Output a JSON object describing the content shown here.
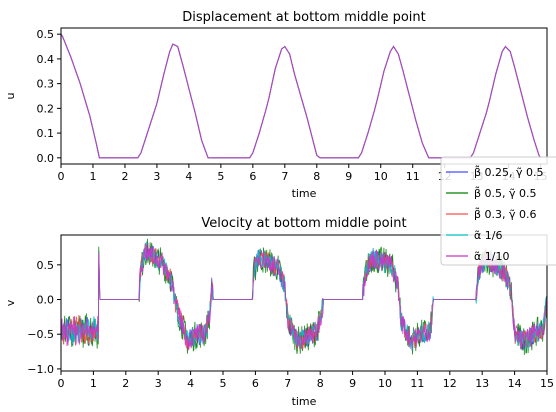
{
  "chart_data": [
    {
      "type": "line",
      "title": "Displacement at bottom middle point",
      "xlabel": "time",
      "ylabel": "u",
      "xlim": [
        0,
        15.2
      ],
      "ylim": [
        -0.025,
        0.525
      ],
      "xticks": [
        "0",
        "1",
        "2",
        "3",
        "4",
        "5",
        "6",
        "7",
        "8",
        "9",
        "10",
        "11",
        "12",
        "13",
        "14",
        "15"
      ],
      "yticks": [
        "0.0",
        "0.1",
        "0.2",
        "0.3",
        "0.4",
        "0.5"
      ],
      "grid": false,
      "series": [
        {
          "name": "β̃ 0.25, γ̃ 0.5",
          "color": "#4a4aff"
        },
        {
          "name": "β̃ 0.5, γ̃ 0.5",
          "color": "#008000"
        },
        {
          "name": "β̃ 0.3, γ̃ 0.6",
          "color": "#ff4d4d"
        },
        {
          "name": "α̃ 1/6",
          "color": "#00bfbf"
        },
        {
          "name": "α̃ 1/10",
          "color": "#cc33cc"
        }
      ],
      "points": [
        [
          0.0,
          0.5
        ],
        [
          0.05,
          0.49
        ],
        [
          0.3,
          0.41
        ],
        [
          0.6,
          0.3
        ],
        [
          0.9,
          0.17
        ],
        [
          1.1,
          0.06
        ],
        [
          1.2,
          0.0
        ],
        [
          2.4,
          0.0
        ],
        [
          2.5,
          0.02
        ],
        [
          2.7,
          0.1
        ],
        [
          2.9,
          0.18
        ],
        [
          3.0,
          0.22
        ],
        [
          3.2,
          0.33
        ],
        [
          3.4,
          0.43
        ],
        [
          3.5,
          0.46
        ],
        [
          3.65,
          0.45
        ],
        [
          3.8,
          0.38
        ],
        [
          4.0,
          0.28
        ],
        [
          4.2,
          0.18
        ],
        [
          4.4,
          0.07
        ],
        [
          4.6,
          0.0
        ],
        [
          5.9,
          0.0
        ],
        [
          6.0,
          0.02
        ],
        [
          6.2,
          0.1
        ],
        [
          6.4,
          0.19
        ],
        [
          6.5,
          0.24
        ],
        [
          6.7,
          0.36
        ],
        [
          6.9,
          0.44
        ],
        [
          7.0,
          0.45
        ],
        [
          7.15,
          0.42
        ],
        [
          7.3,
          0.34
        ],
        [
          7.5,
          0.25
        ],
        [
          7.7,
          0.16
        ],
        [
          7.9,
          0.06
        ],
        [
          8.0,
          0.01
        ],
        [
          8.1,
          0.0
        ],
        [
          9.3,
          0.0
        ],
        [
          9.4,
          0.02
        ],
        [
          9.6,
          0.1
        ],
        [
          9.8,
          0.19
        ],
        [
          9.9,
          0.24
        ],
        [
          10.1,
          0.35
        ],
        [
          10.3,
          0.43
        ],
        [
          10.4,
          0.45
        ],
        [
          10.55,
          0.42
        ],
        [
          10.7,
          0.35
        ],
        [
          10.9,
          0.25
        ],
        [
          11.1,
          0.15
        ],
        [
          11.3,
          0.06
        ],
        [
          11.5,
          0.0
        ],
        [
          12.8,
          0.0
        ],
        [
          12.9,
          0.02
        ],
        [
          13.1,
          0.1
        ],
        [
          13.3,
          0.18
        ],
        [
          13.4,
          0.23
        ],
        [
          13.6,
          0.34
        ],
        [
          13.8,
          0.43
        ],
        [
          13.9,
          0.45
        ],
        [
          14.05,
          0.43
        ],
        [
          14.2,
          0.36
        ],
        [
          14.4,
          0.26
        ],
        [
          14.6,
          0.16
        ],
        [
          14.8,
          0.07
        ],
        [
          14.95,
          0.01
        ],
        [
          15.0,
          0.0
        ]
      ]
    },
    {
      "type": "line",
      "title": "Velocity at bottom middle point",
      "xlabel": "time",
      "ylabel": "v",
      "xlim": [
        0,
        15
      ],
      "ylim": [
        -1.03,
        0.93
      ],
      "xticks": [
        "0",
        "1",
        "2",
        "3",
        "4",
        "5",
        "6",
        "7",
        "8",
        "9",
        "10",
        "11",
        "12",
        "13",
        "14",
        "15"
      ],
      "yticks": [
        "−1.0",
        "−0.5",
        "0.0",
        "0.5"
      ],
      "grid": false,
      "points": [
        [
          0.0,
          -0.45
        ],
        [
          1.15,
          -0.45
        ],
        [
          1.17,
          0.78
        ],
        [
          1.2,
          0.0
        ],
        [
          2.4,
          0.0
        ],
        [
          2.45,
          0.4
        ],
        [
          2.6,
          0.7
        ],
        [
          2.9,
          0.6
        ],
        [
          3.1,
          0.55
        ],
        [
          3.4,
          0.3
        ],
        [
          3.55,
          -0.1
        ],
        [
          3.7,
          -0.3
        ],
        [
          3.9,
          -0.6
        ],
        [
          4.2,
          -0.5
        ],
        [
          4.45,
          -0.5
        ],
        [
          4.6,
          -0.2
        ],
        [
          4.65,
          0.2
        ],
        [
          4.7,
          0.0
        ],
        [
          5.9,
          0.0
        ],
        [
          5.95,
          0.4
        ],
        [
          6.1,
          0.6
        ],
        [
          6.4,
          0.55
        ],
        [
          6.7,
          0.45
        ],
        [
          6.9,
          0.2
        ],
        [
          7.0,
          -0.3
        ],
        [
          7.3,
          -0.6
        ],
        [
          7.6,
          -0.55
        ],
        [
          7.9,
          -0.45
        ],
        [
          8.05,
          -0.2
        ],
        [
          8.1,
          0.0
        ],
        [
          9.3,
          0.0
        ],
        [
          9.4,
          0.4
        ],
        [
          9.6,
          0.6
        ],
        [
          9.9,
          0.55
        ],
        [
          10.2,
          0.5
        ],
        [
          10.4,
          0.2
        ],
        [
          10.5,
          -0.3
        ],
        [
          10.8,
          -0.6
        ],
        [
          11.1,
          -0.5
        ],
        [
          11.4,
          -0.45
        ],
        [
          11.5,
          0.0
        ],
        [
          12.8,
          0.0
        ],
        [
          12.9,
          0.4
        ],
        [
          13.1,
          0.6
        ],
        [
          13.4,
          0.5
        ],
        [
          13.7,
          0.4
        ],
        [
          13.9,
          0.1
        ],
        [
          14.0,
          -0.5
        ],
        [
          14.3,
          -0.6
        ],
        [
          14.6,
          -0.5
        ],
        [
          14.9,
          -0.4
        ],
        [
          15.0,
          0.0
        ]
      ],
      "noise_amplitude": 0.15
    }
  ],
  "legend": {
    "placement": "right",
    "entries": [
      {
        "label": "β̃ 0.25, γ̃ 0.5",
        "color": "#4a4aff"
      },
      {
        "label": "β̃ 0.5, γ̃ 0.5",
        "color": "#008000"
      },
      {
        "label": "β̃ 0.3, γ̃ 0.6",
        "color": "#ff4d4d"
      },
      {
        "label": "α̃ 1/6",
        "color": "#00bfbf"
      },
      {
        "label": "α̃ 1/10",
        "color": "#cc33cc"
      }
    ]
  }
}
